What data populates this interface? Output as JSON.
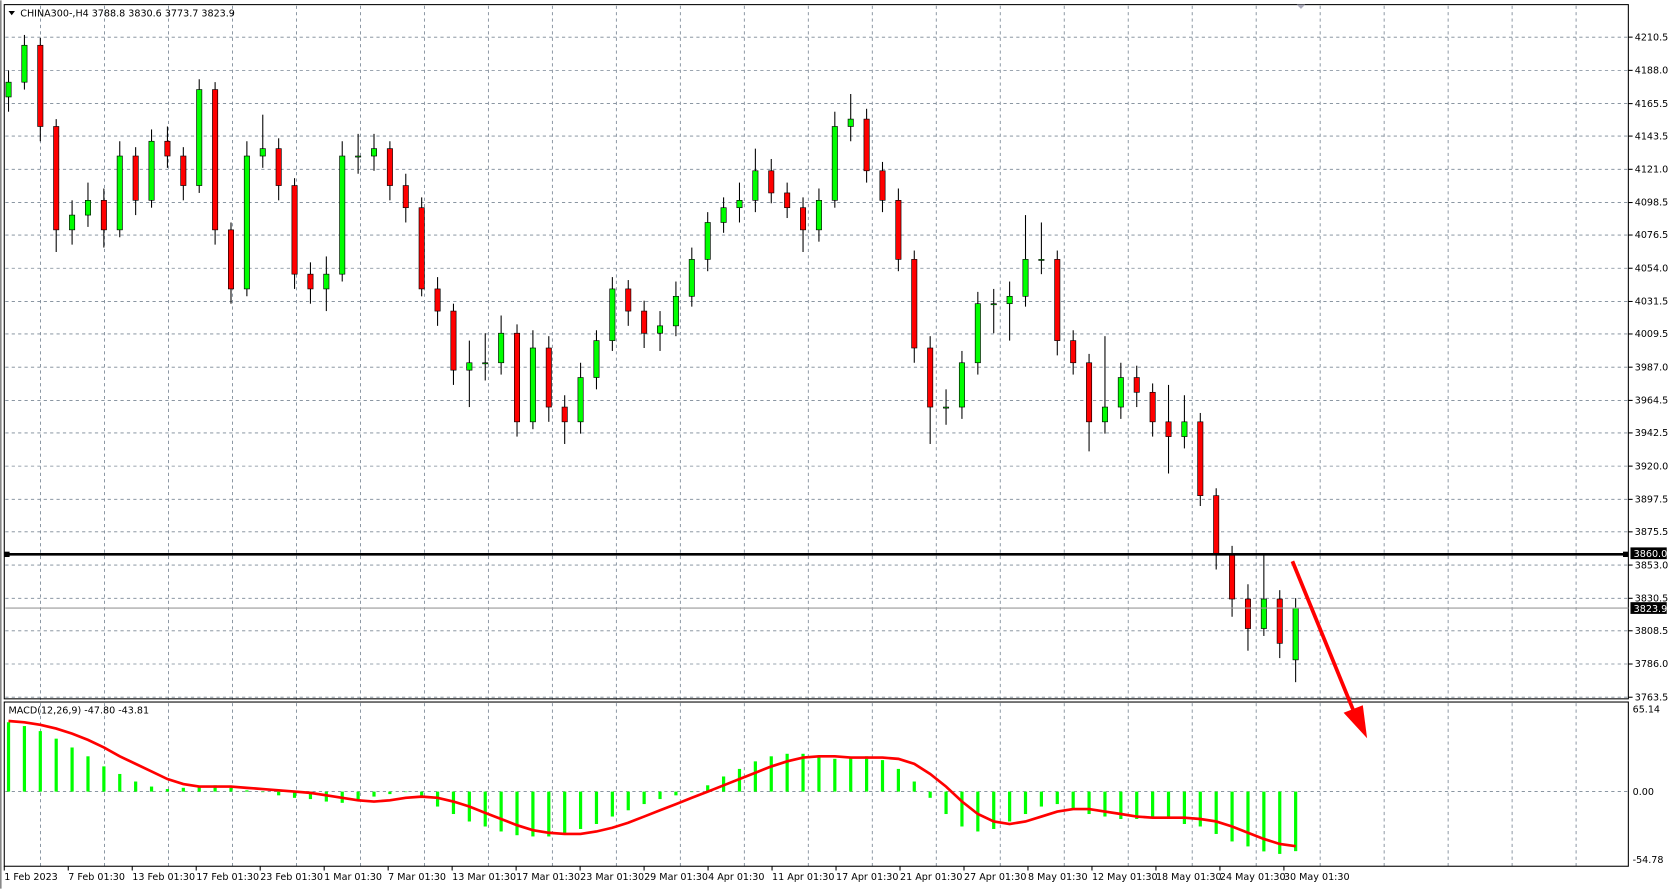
{
  "header": {
    "symbol_label": "CHINA300-,H4",
    "ohlc_label": "3788.8 3830.6 3773.7 3823.9"
  },
  "macd_header": {
    "label": "MACD(12,26,9) -47.80 -43.81"
  },
  "colors": {
    "bull": "#00ff00",
    "bear": "#ff0000",
    "signal": "#ff0000",
    "histogram": "#00ff00",
    "grid": "#7a8795",
    "arrow": "#ff0000"
  },
  "chart_data": [
    {
      "type": "candlestick",
      "title": "CHINA300-,H4",
      "ylim": [
        3763.5,
        4210.5
      ],
      "y_ticks": [
        "4210.5",
        "4188.0",
        "4165.5",
        "4143.5",
        "4121.0",
        "4098.5",
        "4076.5",
        "4054.0",
        "4031.5",
        "4009.5",
        "3987.0",
        "3964.5",
        "3942.5",
        "3920.0",
        "3897.5",
        "3875.5",
        "3853.0",
        "3830.5",
        "3808.5",
        "3786.0",
        "3763.5"
      ],
      "x_ticks": [
        "1 Feb 2023",
        "7 Feb 01:30",
        "13 Feb 01:30",
        "17 Feb 01:30",
        "23 Feb 01:30",
        "1 Mar 01:30",
        "7 Mar 01:30",
        "13 Mar 01:30",
        "17 Mar 01:30",
        "23 Mar 01:30",
        "29 Mar 01:30",
        "4 Apr 01:30",
        "11 Apr 01:30",
        "17 Apr 01:30",
        "21 Apr 01:30",
        "27 Apr 01:30",
        "8 May 01:30",
        "12 May 01:30",
        "18 May 01:30",
        "24 May 01:30",
        "30 May 01:30"
      ],
      "horizontal_line": {
        "value": 3860.0,
        "label": "3860.0"
      },
      "current_price": {
        "value": 3823.9,
        "label": "3823.9"
      },
      "annotation": "red-arrow-down",
      "grid": true,
      "ohlc": [
        [
          4170,
          4188,
          4160,
          4180
        ],
        [
          4180,
          4212,
          4175,
          4205
        ],
        [
          4205,
          4210,
          4140,
          4150
        ],
        [
          4150,
          4155,
          4065,
          4080
        ],
        [
          4080,
          4100,
          4070,
          4090
        ],
        [
          4090,
          4112,
          4082,
          4100
        ],
        [
          4100,
          4108,
          4068,
          4080
        ],
        [
          4080,
          4140,
          4075,
          4130
        ],
        [
          4130,
          4136,
          4090,
          4100
        ],
        [
          4100,
          4148,
          4095,
          4140
        ],
        [
          4140,
          4150,
          4122,
          4130
        ],
        [
          4130,
          4136,
          4100,
          4110
        ],
        [
          4110,
          4182,
          4105,
          4175
        ],
        [
          4175,
          4180,
          4070,
          4080
        ],
        [
          4080,
          4085,
          4030,
          4040
        ],
        [
          4040,
          4140,
          4035,
          4130
        ],
        [
          4130,
          4158,
          4122,
          4135
        ],
        [
          4135,
          4142,
          4100,
          4110
        ],
        [
          4110,
          4115,
          4040,
          4050
        ],
        [
          4050,
          4058,
          4030,
          4040
        ],
        [
          4040,
          4062,
          4025,
          4050
        ],
        [
          4050,
          4140,
          4045,
          4130
        ],
        [
          4130,
          4145,
          4118,
          4130
        ],
        [
          4130,
          4145,
          4120,
          4135
        ],
        [
          4135,
          4140,
          4100,
          4110
        ],
        [
          4110,
          4118,
          4085,
          4095
        ],
        [
          4095,
          4102,
          4035,
          4040
        ],
        [
          4040,
          4048,
          4015,
          4025
        ],
        [
          4025,
          4030,
          3975,
          3985
        ],
        [
          3985,
          4005,
          3960,
          3990
        ],
        [
          3990,
          4010,
          3978,
          3990
        ],
        [
          3990,
          4022,
          3982,
          4010
        ],
        [
          4010,
          4016,
          3940,
          3950
        ],
        [
          3950,
          4012,
          3945,
          4000
        ],
        [
          4000,
          4008,
          3950,
          3960
        ],
        [
          3960,
          3968,
          3935,
          3950
        ],
        [
          3950,
          3990,
          3942,
          3980
        ],
        [
          3980,
          4012,
          3972,
          4005
        ],
        [
          4005,
          4048,
          3998,
          4040
        ],
        [
          4040,
          4046,
          4015,
          4025
        ],
        [
          4025,
          4032,
          4000,
          4010
        ],
        [
          4010,
          4025,
          3998,
          4015
        ],
        [
          4015,
          4045,
          4008,
          4035
        ],
        [
          4035,
          4068,
          4028,
          4060
        ],
        [
          4060,
          4092,
          4052,
          4085
        ],
        [
          4085,
          4102,
          4078,
          4095
        ],
        [
          4095,
          4112,
          4085,
          4100
        ],
        [
          4100,
          4135,
          4092,
          4120
        ],
        [
          4120,
          4128,
          4098,
          4105
        ],
        [
          4105,
          4112,
          4088,
          4095
        ],
        [
          4095,
          4102,
          4065,
          4080
        ],
        [
          4080,
          4108,
          4072,
          4100
        ],
        [
          4100,
          4160,
          4095,
          4150
        ],
        [
          4150,
          4172,
          4140,
          4155
        ],
        [
          4155,
          4162,
          4112,
          4120
        ],
        [
          4120,
          4126,
          4092,
          4100
        ],
        [
          4100,
          4108,
          4052,
          4060
        ],
        [
          4060,
          4066,
          3990,
          4000
        ],
        [
          4000,
          4008,
          3935,
          3960
        ],
        [
          3960,
          3972,
          3948,
          3960
        ],
        [
          3960,
          3998,
          3952,
          3990
        ],
        [
          3990,
          4038,
          3982,
          4030
        ],
        [
          4030,
          4040,
          4010,
          4030
        ],
        [
          4030,
          4045,
          4005,
          4035
        ],
        [
          4035,
          4090,
          4028,
          4060
        ],
        [
          4060,
          4085,
          4050,
          4060
        ],
        [
          4060,
          4066,
          3995,
          4005
        ],
        [
          4005,
          4012,
          3982,
          3990
        ],
        [
          3990,
          3996,
          3930,
          3950
        ],
        [
          3950,
          4008,
          3942,
          3960
        ],
        [
          3960,
          3990,
          3952,
          3980
        ],
        [
          3980,
          3988,
          3960,
          3970
        ],
        [
          3970,
          3976,
          3940,
          3950
        ],
        [
          3950,
          3975,
          3915,
          3940
        ],
        [
          3940,
          3968,
          3932,
          3950
        ],
        [
          3950,
          3956,
          3893,
          3900
        ],
        [
          3900,
          3905,
          3850,
          3860
        ],
        [
          3860,
          3866,
          3818,
          3830
        ],
        [
          3830,
          3840,
          3795,
          3810
        ],
        [
          3810,
          3860,
          3805,
          3830
        ],
        [
          3830,
          3836,
          3790,
          3800
        ],
        [
          3788.8,
          3830.6,
          3773.7,
          3823.9
        ]
      ]
    },
    {
      "type": "bar+line",
      "title": "MACD(12,26,9)",
      "ylim": [
        -54.78,
        65.14
      ],
      "y_ticks": [
        "65.14",
        "0.00",
        "-54.78"
      ],
      "histogram": [
        55,
        52,
        48,
        42,
        35,
        28,
        20,
        14,
        8,
        4,
        2,
        3,
        4,
        5,
        3,
        1,
        0,
        -3,
        -5,
        -6,
        -8,
        -9,
        -7,
        -4,
        -2,
        0,
        -5,
        -12,
        -18,
        -24,
        -28,
        -32,
        -35,
        -36,
        -36,
        -34,
        -30,
        -26,
        -20,
        -15,
        -10,
        -6,
        -3,
        0,
        5,
        12,
        18,
        24,
        28,
        30,
        30,
        28,
        26,
        27,
        28,
        25,
        18,
        8,
        -5,
        -18,
        -28,
        -32,
        -30,
        -24,
        -18,
        -12,
        -10,
        -14,
        -18,
        -20,
        -22,
        -22,
        -20,
        -22,
        -26,
        -28,
        -34,
        -40,
        -44,
        -48,
        -50,
        -47.8
      ],
      "signal": [
        56,
        55,
        53,
        50,
        46,
        41,
        35,
        28,
        22,
        16,
        10,
        6,
        4,
        4,
        4,
        3,
        2,
        1,
        0,
        -1,
        -3,
        -5,
        -7,
        -8,
        -7,
        -5,
        -4,
        -5,
        -8,
        -12,
        -17,
        -22,
        -27,
        -31,
        -33,
        -34,
        -34,
        -32,
        -29,
        -25,
        -20,
        -15,
        -10,
        -5,
        0,
        5,
        10,
        15,
        20,
        24,
        27,
        28,
        28,
        27,
        27,
        27,
        26,
        22,
        14,
        4,
        -8,
        -18,
        -24,
        -26,
        -24,
        -20,
        -16,
        -14,
        -14,
        -16,
        -18,
        -20,
        -21,
        -21,
        -21,
        -22,
        -24,
        -28,
        -33,
        -38,
        -42,
        -43.81
      ]
    }
  ]
}
